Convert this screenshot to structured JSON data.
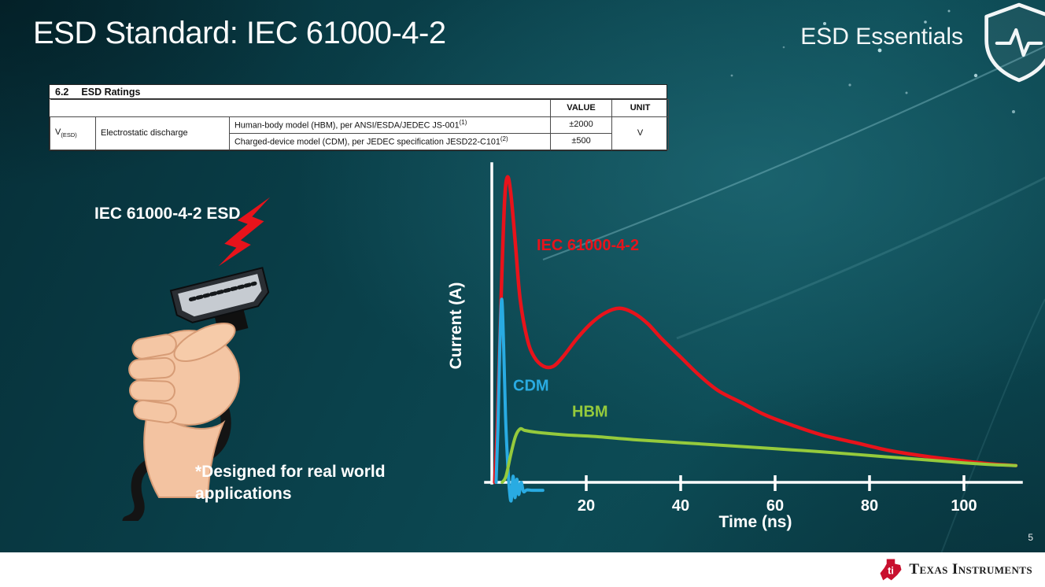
{
  "header": {
    "title": "ESD Standard: IEC 61000-4-2",
    "brand": "ESD Essentials"
  },
  "ratings_table": {
    "section_number": "6.2",
    "section_title": "ESD Ratings",
    "col_value": "VALUE",
    "col_unit": "UNIT",
    "param_symbol": "V",
    "param_symbol_sub": "(ESD)",
    "param_name": "Electrostatic discharge",
    "rows": [
      {
        "description": "Human-body model (HBM), per ANSI/ESDA/JEDEC JS-001",
        "ref": "(1)",
        "value": "±2000"
      },
      {
        "description": "Charged-device model (CDM), per JEDEC specification JESD22-C101",
        "ref": "(2)",
        "value": "±500"
      }
    ],
    "unit": "V"
  },
  "left_panel": {
    "caption": "IEC 61000-4-2 ESD",
    "footnote_line1": "*Designed for real world",
    "footnote_line2": "applications"
  },
  "footer": {
    "page_number": "5",
    "brand": "Texas Instruments"
  },
  "chart_data": {
    "type": "line",
    "title": "",
    "xlabel": "Time (ns)",
    "ylabel": "Current (A)",
    "xlim": [
      0,
      112
    ],
    "ylim": [
      -8,
      104
    ],
    "xticks": [
      20,
      40,
      60,
      80,
      100
    ],
    "grid": false,
    "note": "y-axis has no numeric ticks; values normalized so IEC 61000-4-2 peak = 100",
    "series": [
      {
        "name": "IEC 61000-4-2",
        "color": "#e8131b",
        "width": 4.5,
        "label": {
          "t": 9.5,
          "v": 76
        },
        "points": [
          [
            0.6,
            0
          ],
          [
            1.2,
            20
          ],
          [
            2,
            62
          ],
          [
            2.7,
            92
          ],
          [
            3.3,
            100
          ],
          [
            4,
            95
          ],
          [
            5,
            78
          ],
          [
            6,
            60
          ],
          [
            7.5,
            47
          ],
          [
            9,
            41
          ],
          [
            11,
            38
          ],
          [
            13,
            38
          ],
          [
            15,
            41
          ],
          [
            18,
            47
          ],
          [
            21,
            52
          ],
          [
            24,
            55.5
          ],
          [
            27,
            57
          ],
          [
            30,
            55.5
          ],
          [
            33,
            52
          ],
          [
            36,
            47
          ],
          [
            40,
            41
          ],
          [
            44,
            35
          ],
          [
            48,
            30
          ],
          [
            53,
            26
          ],
          [
            58,
            22
          ],
          [
            64,
            18.5
          ],
          [
            70,
            15.5
          ],
          [
            77,
            13
          ],
          [
            84,
            10.5
          ],
          [
            92,
            8.5
          ],
          [
            100,
            7
          ],
          [
            106,
            6
          ],
          [
            111,
            5.5
          ]
        ]
      },
      {
        "name": "CDM",
        "color": "#29abe2",
        "width": 4,
        "label": {
          "t": 4.5,
          "v": 30
        },
        "points": [
          [
            0.9,
            0
          ],
          [
            1.3,
            18
          ],
          [
            1.7,
            45
          ],
          [
            2.1,
            60
          ],
          [
            2.5,
            45
          ],
          [
            2.9,
            22
          ],
          [
            3.3,
            8
          ],
          [
            3.7,
            -2
          ],
          [
            4.1,
            -6
          ],
          [
            4.5,
            2
          ],
          [
            4.9,
            -5
          ],
          [
            5.3,
            1
          ],
          [
            5.7,
            -4
          ],
          [
            6.2,
            0
          ],
          [
            6.7,
            -3
          ],
          [
            7.4,
            -2.5
          ],
          [
            8.6,
            -2.6
          ],
          [
            10.8,
            -2.6
          ]
        ]
      },
      {
        "name": "HBM",
        "color": "#95ca3c",
        "width": 4,
        "label": {
          "t": 17,
          "v": 21.5
        },
        "points": [
          [
            2.2,
            0
          ],
          [
            3,
            2
          ],
          [
            4,
            9
          ],
          [
            5,
            15
          ],
          [
            6,
            17.5
          ],
          [
            7,
            17
          ],
          [
            9,
            16.5
          ],
          [
            12,
            16
          ],
          [
            16,
            15.5
          ],
          [
            22,
            15
          ],
          [
            30,
            14
          ],
          [
            40,
            13
          ],
          [
            50,
            12
          ],
          [
            60,
            11
          ],
          [
            70,
            10
          ],
          [
            80,
            8.8
          ],
          [
            90,
            7.6
          ],
          [
            100,
            6.4
          ],
          [
            106,
            5.8
          ],
          [
            111,
            5.5
          ]
        ]
      }
    ]
  }
}
